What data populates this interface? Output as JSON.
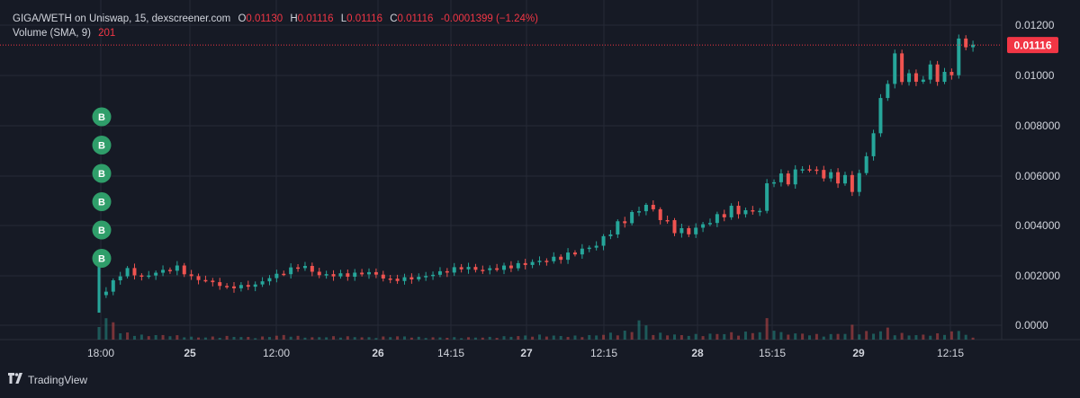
{
  "legend": {
    "symbol": "GIGA/WETH on Uniswap, 15, dexscreener.com",
    "o_label": "O",
    "o_value": "0.01130",
    "h_label": "H",
    "h_value": "0.01116",
    "l_label": "L",
    "l_value": "0.01116",
    "c_label": "C",
    "c_value": "0.01116",
    "change": "-0.0001399 (−1.24%)",
    "volume_label": "Volume (SMA, 9)",
    "volume_value": "201"
  },
  "brand": "TradingView",
  "colors": {
    "background": "#161a25",
    "up": "#26a69a",
    "down": "#ef5350",
    "grid": "#262a36",
    "text": "#d1d4dc",
    "marker": "#2f9e6a",
    "price_tag": "#f23645"
  },
  "chart_data": {
    "type": "candlestick",
    "series": [
      {
        "name": "GIGA/WETH",
        "interval": "15"
      }
    ],
    "x_labels": [
      "18:00",
      "25",
      "12:00",
      "26",
      "14:15",
      "27",
      "12:15",
      "28",
      "15:15",
      "29",
      "12:15"
    ],
    "y_ticks": [
      "0.01200",
      "0.01000",
      "0.008000",
      "0.006000",
      "0.004000",
      "0.002000",
      "0.0000"
    ],
    "ylim": [
      0,
      0.0128
    ],
    "last_price": "0.01116",
    "markers": {
      "label": "B",
      "count": 6
    },
    "close_path": [
      [
        0.0,
        0.0005
      ],
      [
        0.0,
        0.0029
      ],
      [
        0.3,
        0.0012
      ],
      [
        1.2,
        0.0019
      ],
      [
        2.0,
        0.0022
      ],
      [
        3.0,
        0.0019
      ],
      [
        4.0,
        0.0021
      ],
      [
        5.5,
        0.0023
      ],
      [
        6.5,
        0.0019
      ],
      [
        8.0,
        0.0017
      ],
      [
        9.0,
        0.0015
      ],
      [
        11.0,
        0.0016
      ],
      [
        12.0,
        0.0019
      ],
      [
        13.0,
        0.0021
      ],
      [
        14.2,
        0.0024
      ],
      [
        15.5,
        0.002
      ],
      [
        17.5,
        0.002
      ],
      [
        19.0,
        0.0021
      ],
      [
        20.5,
        0.0018
      ],
      [
        22.5,
        0.0019
      ],
      [
        24.0,
        0.0021
      ],
      [
        25.5,
        0.0023
      ],
      [
        27.0,
        0.0022
      ],
      [
        28.5,
        0.0023
      ],
      [
        30.5,
        0.0025
      ],
      [
        32.5,
        0.0027
      ],
      [
        33.5,
        0.0029
      ],
      [
        35.0,
        0.0032
      ],
      [
        36.5,
        0.004
      ],
      [
        37.5,
        0.0044
      ],
      [
        38.5,
        0.0048
      ],
      [
        39.5,
        0.0043
      ],
      [
        40.5,
        0.0038
      ],
      [
        41.5,
        0.0037
      ],
      [
        42.5,
        0.004
      ],
      [
        43.5,
        0.0043
      ],
      [
        44.5,
        0.0046
      ],
      [
        45.5,
        0.0045
      ],
      [
        46.5,
        0.0046
      ],
      [
        47.2,
        0.0059
      ],
      [
        48.5,
        0.0058
      ],
      [
        49.5,
        0.0063
      ],
      [
        50.5,
        0.0061
      ],
      [
        51.5,
        0.0059
      ],
      [
        52.5,
        0.0058
      ],
      [
        52.8,
        0.0052
      ],
      [
        53.5,
        0.006
      ],
      [
        54.0,
        0.0067
      ],
      [
        54.6,
        0.008
      ],
      [
        55.2,
        0.0092
      ],
      [
        55.8,
        0.0107
      ],
      [
        56.4,
        0.01
      ],
      [
        57.2,
        0.0098
      ],
      [
        57.8,
        0.0097
      ],
      [
        58.4,
        0.0102
      ],
      [
        59.0,
        0.01
      ],
      [
        59.6,
        0.0097
      ],
      [
        60.2,
        0.0106
      ],
      [
        60.6,
        0.0113
      ],
      [
        61.5,
        0.01116
      ]
    ],
    "volume": [
      [
        0,
        1.0
      ],
      [
        0.3,
        0.8
      ],
      [
        0.6,
        0.9
      ],
      [
        1.0,
        0.9
      ],
      [
        1.5,
        0.3
      ],
      [
        2.0,
        0.3
      ],
      [
        3.0,
        0.2
      ],
      [
        5.0,
        0.2
      ],
      [
        7.0,
        0.1
      ],
      [
        9.0,
        0.15
      ],
      [
        11.0,
        0.1
      ],
      [
        13.0,
        0.2
      ],
      [
        15.0,
        0.1
      ],
      [
        17.0,
        0.15
      ],
      [
        19.0,
        0.1
      ],
      [
        21.0,
        0.15
      ],
      [
        23.0,
        0.1
      ],
      [
        25.0,
        0.1
      ],
      [
        27.0,
        0.1
      ],
      [
        29.0,
        0.15
      ],
      [
        31.0,
        0.2
      ],
      [
        33.0,
        0.15
      ],
      [
        35.0,
        0.2
      ],
      [
        36.2,
        0.3
      ],
      [
        37.5,
        0.4
      ],
      [
        38.0,
        0.9
      ],
      [
        39.0,
        0.3
      ],
      [
        41.0,
        0.2
      ],
      [
        43.0,
        0.25
      ],
      [
        44.5,
        0.3
      ],
      [
        46.5,
        0.35
      ],
      [
        47.0,
        0.9
      ],
      [
        48.0,
        0.3
      ],
      [
        50.0,
        0.25
      ],
      [
        51.0,
        0.2
      ],
      [
        52.5,
        0.3
      ],
      [
        53.0,
        0.6
      ],
      [
        53.5,
        0.4
      ],
      [
        54.5,
        0.3
      ],
      [
        55.5,
        0.5
      ],
      [
        56.0,
        0.3
      ],
      [
        57.5,
        0.2
      ],
      [
        59.0,
        0.25
      ],
      [
        60.5,
        0.4
      ],
      [
        61.2,
        0.2
      ]
    ]
  }
}
